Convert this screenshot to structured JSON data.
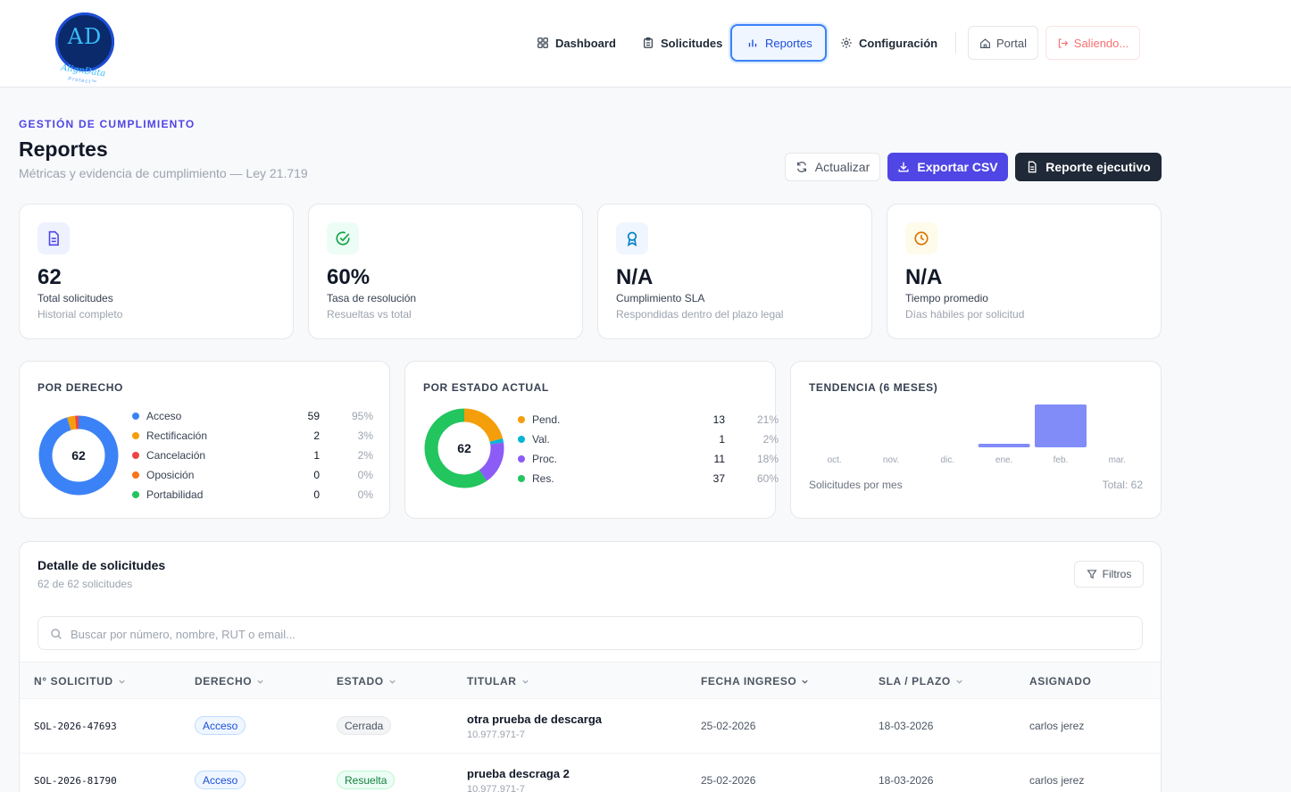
{
  "app": {
    "logo_text": "AD",
    "logo_sub": "AlignData",
    "logo_sub2": "Protect™"
  },
  "nav": {
    "items": [
      {
        "label": "Dashboard",
        "icon": "grid-icon"
      },
      {
        "label": "Solicitudes",
        "icon": "clipboard-icon"
      },
      {
        "label": "Reportes",
        "icon": "bar-chart-icon"
      },
      {
        "label": "Configuración",
        "icon": "gear-icon"
      }
    ],
    "active": "Reportes",
    "portal_label": "Portal",
    "logout_label": "Saliendo..."
  },
  "page": {
    "eyebrow": "GESTIÓN DE CUMPLIMIENTO",
    "title": "Reportes",
    "subtitle": "Métricas y evidencia de cumplimiento — Ley 21.719",
    "actions": {
      "refresh": "Actualizar",
      "export_csv": "Exportar CSV",
      "executive_report": "Reporte ejecutivo"
    }
  },
  "kpis": [
    {
      "value": "62",
      "label": "Total solicitudes",
      "note": "Historial completo",
      "icon": "document-icon",
      "color": "#4f46e5",
      "bg": "#eef2ff"
    },
    {
      "value": "60%",
      "label": "Tasa de resolución",
      "note": "Resueltas vs total",
      "icon": "check-circle-icon",
      "color": "#16a34a",
      "bg": "#ecfdf5"
    },
    {
      "value": "N/A",
      "label": "Cumplimiento SLA",
      "note": "Respondidas dentro del plazo legal",
      "icon": "award-icon",
      "color": "#0284c7",
      "bg": "#eff6ff"
    },
    {
      "value": "N/A",
      "label": "Tiempo promedio",
      "note": "Días hábiles por solicitud",
      "icon": "clock-icon",
      "color": "#d97706",
      "bg": "#fffbeb"
    }
  ],
  "chart_data": [
    {
      "type": "pie",
      "title": "POR DERECHO",
      "center_label": "62",
      "categories": [
        "Acceso",
        "Rectificación",
        "Cancelación",
        "Oposición",
        "Portabilidad"
      ],
      "values": [
        59,
        2,
        1,
        0,
        0
      ],
      "percents": [
        "95%",
        "3%",
        "2%",
        "0%",
        "0%"
      ],
      "colors": [
        "#3b82f6",
        "#f59e0b",
        "#ef4444",
        "#f97316",
        "#22c55e"
      ]
    },
    {
      "type": "pie",
      "title": "POR ESTADO ACTUAL",
      "center_label": "62",
      "categories": [
        "Pend.",
        "Val.",
        "Proc.",
        "Res."
      ],
      "values": [
        13,
        1,
        11,
        37
      ],
      "percents": [
        "21%",
        "2%",
        "18%",
        "60%"
      ],
      "colors": [
        "#f59e0b",
        "#06b6d4",
        "#8b5cf6",
        "#22c55e"
      ]
    },
    {
      "type": "bar",
      "title": "TENDENCIA (6 MESES)",
      "categories": [
        "oct.",
        "nov.",
        "dic.",
        "ene.",
        "feb.",
        "mar."
      ],
      "values": [
        0,
        0,
        0,
        4,
        48,
        0
      ],
      "ylabel": "",
      "ylim": [
        0,
        48
      ],
      "footer_left": "Solicitudes por mes",
      "footer_right": "Total: 62",
      "color": "#818cf8"
    }
  ],
  "table": {
    "title": "Detalle de solicitudes",
    "subtitle": "62 de 62 solicitudes",
    "filters_label": "Filtros",
    "search_placeholder": "Buscar por número, nombre, RUT o email...",
    "columns": [
      "N° SOLICITUD",
      "DERECHO",
      "ESTADO",
      "TITULAR",
      "FECHA INGRESO",
      "SLA / PLAZO",
      "ASIGNADO"
    ],
    "rows": [
      {
        "id": "SOL-2026-47693",
        "right": "Acceso",
        "status": "Cerrada",
        "status_color": "#4b5563",
        "status_bg": "#f3f4f6",
        "holder": "otra prueba de descarga",
        "rut": "10.977.971-7",
        "date": "25-02-2026",
        "sla": "18-03-2026",
        "assigned": "carlos jerez"
      },
      {
        "id": "SOL-2026-81790",
        "right": "Acceso",
        "status": "Resuelta",
        "status_color": "#15803d",
        "status_bg": "#ecfdf5",
        "holder": "prueba descraga 2",
        "rut": "10.977.971-7",
        "date": "25-02-2026",
        "sla": "18-03-2026",
        "assigned": "carlos jerez"
      }
    ]
  }
}
